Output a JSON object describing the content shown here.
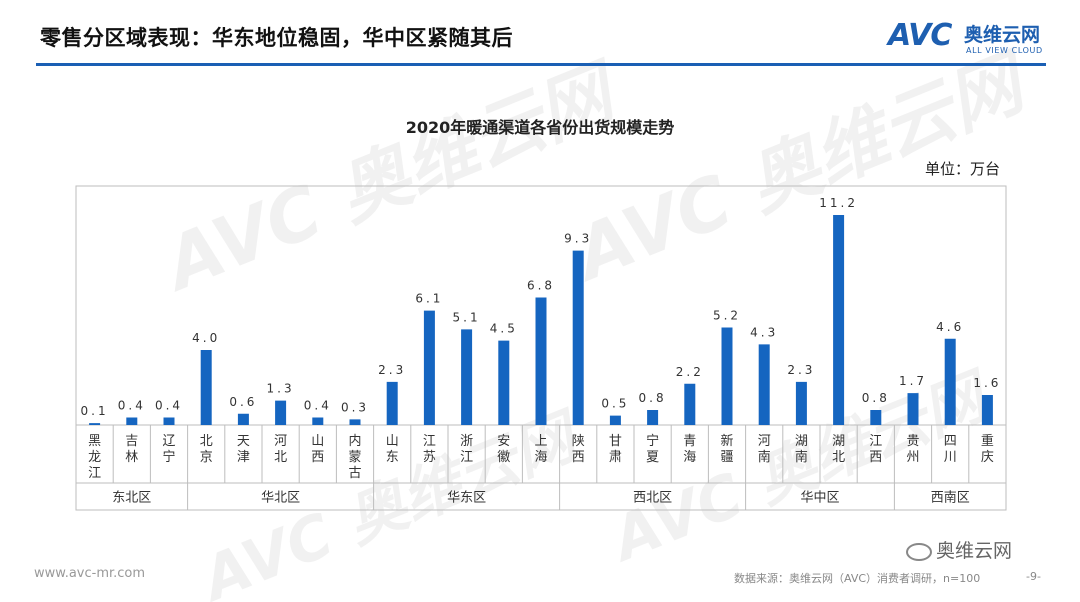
{
  "header": {
    "title": "零售分区域表现：华东地位稳固，华中区紧随其后",
    "brand_mark": "AVC",
    "brand_name": "奥维云网",
    "brand_sub": "ALL VIEW CLOUD"
  },
  "watermark_text": "AVC 奥维云网",
  "unit": "单位：万台",
  "footer": {
    "url": "www.avc-mr.com",
    "source": "数据来源：奥维云网（AVC）消费者调研，n=100",
    "page": "-9-",
    "wechat": "奥维云网"
  },
  "colors": {
    "bar": "#1565c0",
    "rule": "#1a5fb4",
    "frame": "#bdbdbd"
  },
  "chart_data": {
    "type": "bar",
    "title": "2020年暖通渠道各省份出货规模走势",
    "ylabel": "",
    "xlabel": "",
    "ylim": [
      0,
      12
    ],
    "categories": [
      "黑龙江",
      "吉林",
      "辽宁",
      "北京",
      "天津",
      "河北",
      "山西",
      "内蒙古",
      "山东",
      "江苏",
      "浙江",
      "安徽",
      "上海",
      "陕西",
      "甘肃",
      "宁夏",
      "青海",
      "新疆",
      "河南",
      "湖南",
      "湖北",
      "江西",
      "贵州",
      "四川",
      "重庆"
    ],
    "values": [
      0.1,
      0.4,
      0.4,
      4.0,
      0.6,
      1.3,
      0.4,
      0.3,
      2.3,
      6.1,
      5.1,
      4.5,
      6.8,
      9.3,
      0.5,
      0.8,
      2.2,
      5.2,
      4.3,
      2.3,
      11.2,
      0.8,
      1.7,
      4.6,
      1.6
    ],
    "labels": [
      "0.1",
      "0.4",
      "0.4",
      "4.0",
      "0.6",
      "1.3",
      "0.4",
      "0.3",
      "2.3",
      "6.1",
      "5.1",
      "4.5",
      "6.8",
      "9.3",
      "0.5",
      "0.8",
      "2.2",
      "5.2",
      "4.3",
      "2.3",
      "11.2",
      "0.8",
      "1.7",
      "4.6",
      "1.6"
    ],
    "groups": [
      {
        "name": "东北区",
        "start": 0,
        "count": 3
      },
      {
        "name": "华北区",
        "start": 3,
        "count": 5
      },
      {
        "name": "华东区",
        "start": 8,
        "count": 5
      },
      {
        "name": "西北区",
        "start": 13,
        "count": 5
      },
      {
        "name": "华中区",
        "start": 18,
        "count": 4
      },
      {
        "name": "西南区",
        "start": 22,
        "count": 3
      }
    ]
  }
}
